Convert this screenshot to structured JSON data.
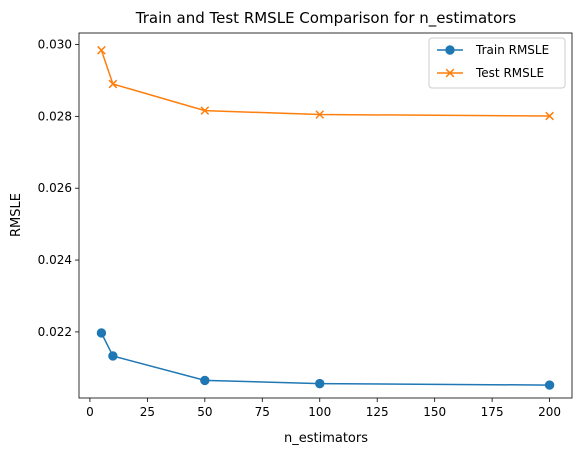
{
  "chart_data": {
    "type": "line",
    "title": "Train and Test RMSLE Comparison for n_estimators",
    "xlabel": "n_estimators",
    "ylabel": "RMSLE",
    "x": [
      5,
      10,
      50,
      100,
      200
    ],
    "xlim": [
      -4.75,
      209.75
    ],
    "ylim": [
      0.02016,
      0.03032
    ],
    "xticks": [
      0,
      25,
      50,
      75,
      100,
      125,
      150,
      175,
      200
    ],
    "yticks": [
      0.022,
      0.024,
      0.026,
      0.028,
      0.03
    ],
    "ytick_labels": [
      "0.022",
      "0.024",
      "0.026",
      "0.028",
      "0.030"
    ],
    "grid": false,
    "legend_position": "upper-right",
    "series": [
      {
        "name": "Train RMSLE",
        "marker": "circle",
        "color": "#1f77b4",
        "values": [
          0.02197,
          0.02133,
          0.02065,
          0.02056,
          0.02052
        ]
      },
      {
        "name": "Test RMSLE",
        "marker": "x",
        "color": "#ff7f0e",
        "values": [
          0.02984,
          0.0289,
          0.02816,
          0.02805,
          0.02801
        ]
      }
    ]
  }
}
